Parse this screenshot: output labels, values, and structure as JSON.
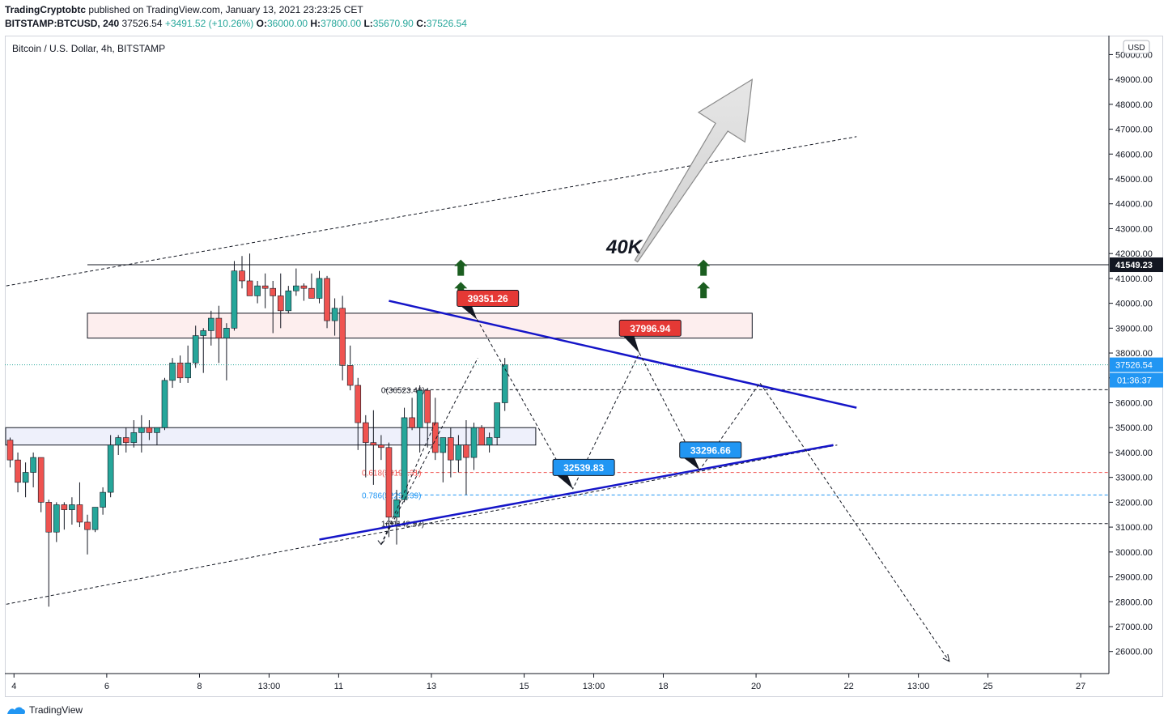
{
  "header": {
    "publisher": "TradingCryptobtc",
    "published_text": "published on TradingView.com, January 13, 2021 23:23:25 CET",
    "symbol": "BITSTAMP:BTCUSD, 240",
    "last": "37526.54",
    "change": "+3491.52 (+10.26%)",
    "o_label": "O:",
    "o": "36000.00",
    "h_label": "H:",
    "h": "37800.00",
    "l_label": "L:",
    "l": "35670.90",
    "c_label": "C:",
    "c": "37526.54"
  },
  "footer": {
    "brand": "TradingView",
    "icon": "tradingview-logo-icon"
  },
  "colors": {
    "up": "#26a69a",
    "down": "#ef5350",
    "trend": "#1515c8",
    "label_red": "#e53935",
    "label_blue": "#2196f3",
    "arrow_green": "#1b5e20"
  },
  "chart_data": {
    "type": "candlestick",
    "title": "Bitcoin / U.S. Dollar, 4h, BITSTAMP",
    "currency": "USD",
    "ylim": [
      25000,
      51000
    ],
    "y_ticks": [
      26000,
      27000,
      28000,
      29000,
      30000,
      31000,
      32000,
      33000,
      34000,
      35000,
      36000,
      37000,
      38000,
      39000,
      40000,
      41000,
      42000,
      43000,
      44000,
      45000,
      46000,
      47000,
      48000,
      49000,
      50000
    ],
    "y_tick_labels": [
      "26000.00",
      "27000.00",
      "28000.00",
      "29000.00",
      "30000.00",
      "31000.00",
      "32000.00",
      "33000.00",
      "34000.00",
      "35000.00",
      "36000.00",
      "37000.00",
      "38000.00",
      "39000.00",
      "40000.00",
      "41000.00",
      "42000.00",
      "43000.00",
      "44000.00",
      "45000.00",
      "46000.00",
      "47000.00",
      "48000.00",
      "49000.00",
      "50000.00"
    ],
    "x_ticks": [
      {
        "label": "4",
        "t": 0.5
      },
      {
        "label": "6",
        "t": 12.5
      },
      {
        "label": "8",
        "t": 24.5
      },
      {
        "label": "13:00",
        "t": 33.5
      },
      {
        "label": "11",
        "t": 42.5
      },
      {
        "label": "13",
        "t": 54.5
      },
      {
        "label": "15",
        "t": 66.5
      },
      {
        "label": "13:00",
        "t": 75.5
      },
      {
        "label": "18",
        "t": 84.5
      },
      {
        "label": "20",
        "t": 96.5
      },
      {
        "label": "22",
        "t": 108.5
      },
      {
        "label": "13:00",
        "t": 117.5
      },
      {
        "label": "25",
        "t": 126.5
      },
      {
        "label": "27",
        "t": 138.5
      }
    ],
    "candles": [
      [
        34500,
        34600,
        33400,
        33700
      ],
      [
        33700,
        34000,
        32400,
        32800
      ],
      [
        32800,
        33600,
        32200,
        33200
      ],
      [
        33200,
        34000,
        32600,
        33800
      ],
      [
        33800,
        33800,
        31600,
        32000
      ],
      [
        32000,
        32100,
        27800,
        30800
      ],
      [
        30800,
        32000,
        30400,
        31900
      ],
      [
        31900,
        32000,
        30900,
        31700
      ],
      [
        31700,
        32200,
        31100,
        31900
      ],
      [
        31900,
        32800,
        31000,
        31200
      ],
      [
        31200,
        31500,
        29900,
        30900
      ],
      [
        30900,
        31800,
        30800,
        31800
      ],
      [
        31800,
        32600,
        31500,
        32400
      ],
      [
        32400,
        34700,
        32200,
        34300
      ],
      [
        34300,
        34700,
        33900,
        34600
      ],
      [
        34600,
        35000,
        34000,
        34400
      ],
      [
        34400,
        35300,
        34200,
        34800
      ],
      [
        34800,
        35500,
        34000,
        35000
      ],
      [
        35000,
        35300,
        34500,
        34800
      ],
      [
        34800,
        35000,
        34300,
        35000
      ],
      [
        35000,
        37000,
        34900,
        36900
      ],
      [
        36900,
        37800,
        36600,
        37600
      ],
      [
        37600,
        37900,
        36800,
        37000
      ],
      [
        37000,
        38300,
        36800,
        37600
      ],
      [
        37600,
        39100,
        37400,
        38700
      ],
      [
        38700,
        39000,
        37200,
        38900
      ],
      [
        38900,
        39700,
        38300,
        39400
      ],
      [
        39400,
        39900,
        37600,
        38600
      ],
      [
        38600,
        39200,
        36900,
        39000
      ],
      [
        39000,
        41700,
        38900,
        41300
      ],
      [
        41300,
        41900,
        40600,
        40900
      ],
      [
        40900,
        42000,
        40400,
        40300
      ],
      [
        40300,
        40900,
        40000,
        40700
      ],
      [
        40700,
        41200,
        39800,
        40600
      ],
      [
        40600,
        40900,
        38800,
        40300
      ],
      [
        40300,
        41200,
        39000,
        39700
      ],
      [
        39700,
        40700,
        39600,
        40500
      ],
      [
        40500,
        41400,
        40300,
        40700
      ],
      [
        40700,
        40800,
        40100,
        40600
      ],
      [
        40600,
        41200,
        40200,
        40200
      ],
      [
        40200,
        41300,
        40000,
        41000
      ],
      [
        41000,
        41100,
        39000,
        39300
      ],
      [
        39300,
        40200,
        38700,
        39800
      ],
      [
        39800,
        40300,
        36900,
        37500
      ],
      [
        37500,
        38300,
        36500,
        36700
      ],
      [
        36700,
        37000,
        34100,
        35200
      ],
      [
        35200,
        35500,
        33000,
        34400
      ],
      [
        34400,
        35700,
        32700,
        34300
      ],
      [
        34300,
        34700,
        33700,
        34200
      ],
      [
        34200,
        34400,
        30600,
        31400
      ],
      [
        31400,
        32500,
        30300,
        32100
      ],
      [
        32100,
        35800,
        32000,
        35400
      ],
      [
        35400,
        36200,
        34900,
        35000
      ],
      [
        35000,
        36700,
        34000,
        36500
      ],
      [
        36500,
        36600,
        34200,
        35200
      ],
      [
        35200,
        36200,
        33700,
        34000
      ],
      [
        34000,
        34400,
        32800,
        34600
      ],
      [
        34600,
        35000,
        33000,
        33700
      ],
      [
        33700,
        34700,
        33200,
        34300
      ],
      [
        34300,
        35300,
        32300,
        33800
      ],
      [
        33800,
        35200,
        33300,
        35000
      ],
      [
        35000,
        35100,
        34400,
        34300
      ],
      [
        34300,
        34800,
        34000,
        34600
      ],
      [
        34600,
        36000,
        34300,
        36000
      ],
      [
        36000,
        37800,
        35670.9,
        37526.54
      ]
    ],
    "levels": [
      {
        "name": "resistance",
        "price": 41549.23,
        "label": "41549.23"
      },
      {
        "name": "last-price",
        "price": 37526.54,
        "label": "37526.54"
      }
    ],
    "countdown": "01:36:37",
    "zones": [
      {
        "name": "resistance-zone",
        "t0": 10,
        "t1": 96,
        "top": 39600,
        "bottom": 38600
      },
      {
        "name": "support-zone",
        "t0": 0,
        "t1": 68,
        "top": 35000,
        "bottom": 34300
      }
    ],
    "fib_levels": [
      {
        "label": "0(36523.46)",
        "price": 36523.46,
        "color": "#131722",
        "label_t": 48
      },
      {
        "label": "0.618(33198.31)",
        "price": 33198.31,
        "color": "#ef5350",
        "label_t": 45.5
      },
      {
        "label": "0.786(32294.39)",
        "price": 32294.39,
        "color": "#2196f3",
        "label_t": 45.5
      },
      {
        "label": "1(31142.97)",
        "price": 31142.97,
        "color": "#131722",
        "label_t": 48
      }
    ],
    "price_labels": [
      {
        "text": "39351.26",
        "color": "#e53935",
        "t": 61.8,
        "price": 40200,
        "anchor_t": 60.4,
        "anchor_price": 39351.26
      },
      {
        "text": "37996.94",
        "color": "#e53935",
        "t": 82.8,
        "price": 39000,
        "anchor_t": 81.4,
        "anchor_price": 37996.94
      },
      {
        "text": "32539.83",
        "color": "#2196f3",
        "t": 74.2,
        "price": 33400,
        "anchor_t": 72.8,
        "anchor_price": 32539.83
      },
      {
        "text": "33296.66",
        "color": "#2196f3",
        "t": 90.6,
        "price": 34100,
        "anchor_t": 89.2,
        "anchor_price": 33296.66
      }
    ],
    "annotation": "40K",
    "trend_lines": [
      {
        "name": "upper-channel-line",
        "t0": -0.5,
        "p0": 40700,
        "t1": 109.5,
        "p1": 46700,
        "style": "dashed",
        "color": "#131722"
      },
      {
        "name": "lower-channel-line",
        "t0": -0.5,
        "p0": 27900,
        "t1": 107,
        "p1": 34300,
        "style": "dashed",
        "color": "#131722"
      },
      {
        "name": "descending-trend-line",
        "t0": 49,
        "p0": 40100,
        "t1": 109.5,
        "p1": 35800,
        "style": "solid",
        "color": "#1515c8"
      },
      {
        "name": "ascending-trend-line",
        "t0": 40,
        "p0": 30500,
        "t1": 106.5,
        "p1": 34300,
        "style": "solid",
        "color": "#1515c8"
      },
      {
        "name": "fib-base-line",
        "t0": 48,
        "p0": 30300,
        "t1": 60.5,
        "p1": 37800,
        "style": "dashed",
        "color": "#131722"
      },
      {
        "name": "fib-retrace-line",
        "t0": 48,
        "p0": 30300,
        "t1": 55,
        "p1": 35200,
        "style": "dashed",
        "color": "#131722"
      }
    ],
    "projection_path": [
      [
        60.4,
        39351.26
      ],
      [
        72.8,
        32539.83
      ],
      [
        81.4,
        37996.94
      ],
      [
        89.2,
        33296.66
      ],
      [
        97,
        36800
      ],
      [
        121.5,
        25600
      ]
    ],
    "green_arrows": [
      [
        58.3,
        41400
      ],
      [
        58.3,
        40500
      ],
      [
        89.7,
        41400
      ],
      [
        89.7,
        40500
      ]
    ],
    "big_arrow": {
      "tail_t": 81,
      "tail_p": 41700,
      "head_t": 96,
      "head_p": 49000
    }
  }
}
